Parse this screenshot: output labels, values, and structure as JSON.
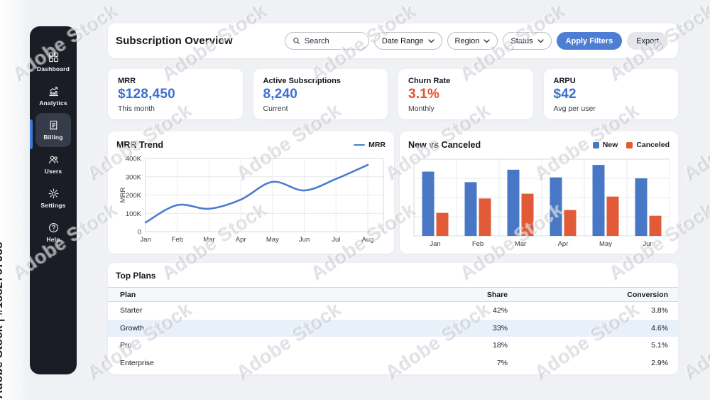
{
  "watermark": {
    "diagonal_text": "Adobe Stock",
    "side_text": "Adobe Stock | #1882767958"
  },
  "colors": {
    "accent_button": "#4d7ed3",
    "kpi_blue": "#3a6fd4",
    "kpi_orange": "#e5512f",
    "line_blue": "#4a7cd2",
    "bar_blue": "#4878c5",
    "bar_orange": "#e15b38",
    "sidebar_bg": "#1a1d25",
    "highlight_row": "#e8f0fa"
  },
  "sidebar": {
    "items": [
      {
        "label": "Dashboard",
        "icon": "dashboard-icon",
        "active": false
      },
      {
        "label": "Analytics",
        "icon": "analytics-icon",
        "active": false
      },
      {
        "label": "Billing",
        "icon": "billing-icon",
        "active": true
      },
      {
        "label": "Users",
        "icon": "users-icon",
        "active": false
      },
      {
        "label": "Settings",
        "icon": "settings-icon",
        "active": false
      },
      {
        "label": "Help",
        "icon": "help-icon",
        "active": false
      }
    ]
  },
  "header": {
    "title": "Subscription Overview",
    "search_placeholder": "Search",
    "filters": [
      {
        "label": "Date Range"
      },
      {
        "label": "Region"
      },
      {
        "label": "Status"
      }
    ],
    "apply_button": "Apply Filters",
    "export_button": "Export"
  },
  "kpis": [
    {
      "label": "MRR",
      "value": "$128,450",
      "sub": "This month",
      "color": "blue"
    },
    {
      "label": "Active Subscriptions",
      "value": "8,240",
      "sub": "Current",
      "color": "blue"
    },
    {
      "label": "Churn Rate",
      "value": "3.1%",
      "sub": "Monthly",
      "color": "orange"
    },
    {
      "label": "ARPU",
      "value": "$42",
      "sub": "Avg per user",
      "color": "blue"
    }
  ],
  "chart_data": [
    {
      "type": "line",
      "title": "MRR Trend",
      "ylabel": "MRR",
      "x": [
        "Jan",
        "Feb",
        "Mar",
        "Apr",
        "May",
        "Jun",
        "Jul",
        "Aug"
      ],
      "series": [
        {
          "name": "MRR",
          "values": [
            50000,
            145000,
            125000,
            175000,
            272000,
            225000,
            288000,
            365000
          ]
        }
      ],
      "ylim": [
        0,
        400000
      ],
      "yticks": [
        "0",
        "100K",
        "200K",
        "300K",
        "400K"
      ],
      "grid": true,
      "legend_position": "top-right"
    },
    {
      "type": "bar",
      "title": "New vs Canceled",
      "categories": [
        "Jan",
        "Feb",
        "Mar",
        "Apr",
        "May",
        "Jun"
      ],
      "series": [
        {
          "name": "New",
          "values": [
            335,
            280,
            345,
            305,
            370,
            300
          ]
        },
        {
          "name": "Canceled",
          "values": [
            120,
            195,
            220,
            135,
            205,
            105
          ]
        }
      ],
      "ylim": [
        0,
        400
      ],
      "yticks": [],
      "note": "y-axis unlabeled in source; values are relative units estimated from gridlines",
      "grid": true,
      "legend_position": "top-right"
    }
  ],
  "table": {
    "title": "Top Plans",
    "columns": [
      "Plan",
      "Share",
      "Conversion"
    ],
    "rows": [
      {
        "plan": "Starter",
        "share": "42%",
        "conversion": "3.8%",
        "highlighted": false
      },
      {
        "plan": "Growth",
        "share": "33%",
        "conversion": "4.6%",
        "highlighted": true
      },
      {
        "plan": "Pro",
        "share": "18%",
        "conversion": "5.1%",
        "highlighted": false
      },
      {
        "plan": "Enterprise",
        "share": "7%",
        "conversion": "2.9%",
        "highlighted": false
      }
    ]
  }
}
